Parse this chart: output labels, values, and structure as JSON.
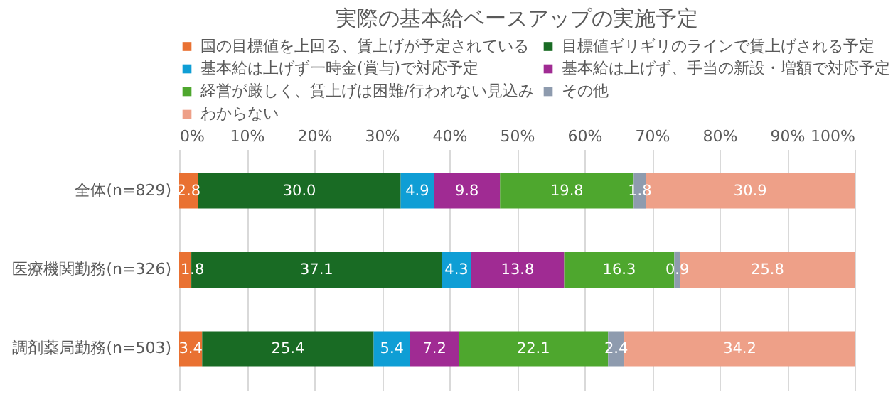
{
  "chart_data": {
    "type": "bar",
    "orientation": "horizontal",
    "stacked": true,
    "title": "実際の基本給ベースアップの実施予定",
    "categories": [
      "全体(n=829)",
      "医療機関勤務(n=326)",
      "調剤薬局勤務(n=503)"
    ],
    "series": [
      {
        "name": "国の目標値を上回る、賃上げが予定されている",
        "color": "#e97132",
        "values": [
          2.8,
          1.8,
          3.4
        ],
        "value_labels": [
          "2.8",
          "1.8",
          "3.4"
        ]
      },
      {
        "name": "目標値ギリギリのラインで賃上げされる予定",
        "color": "#196b24",
        "values": [
          30.0,
          37.1,
          25.4
        ],
        "value_labels": [
          "30.0",
          "37.1",
          "25.4"
        ]
      },
      {
        "name": "基本給は上げず一時金(賞与)で対応予定",
        "color": "#0f9ed5",
        "values": [
          4.9,
          4.3,
          5.4
        ],
        "value_labels": [
          "4.9",
          "4.3",
          "5.4"
        ]
      },
      {
        "name": "基本給は上げず、手当の新設・増額で対応予定",
        "color": "#a02b93",
        "values": [
          9.8,
          13.8,
          7.2
        ],
        "value_labels": [
          "9.8",
          "13.8",
          "7.2"
        ]
      },
      {
        "name": "経営が厳しく、賃上げは困難/行われない見込み",
        "color": "#4ea72e",
        "values": [
          19.8,
          16.3,
          22.1
        ],
        "value_labels": [
          "19.8",
          "16.3",
          "22.1"
        ]
      },
      {
        "name": "その他",
        "color": "#8e9bae",
        "values": [
          1.8,
          0.9,
          2.4
        ],
        "value_labels": [
          "1.8",
          "0.9",
          "2.4"
        ]
      },
      {
        "name": "わからない",
        "color": "#eea088",
        "values": [
          30.9,
          25.8,
          34.2
        ],
        "value_labels": [
          "30.9",
          "25.8",
          "34.2"
        ]
      }
    ],
    "xlim": [
      0,
      100
    ],
    "xticks": [
      {
        "value": 0,
        "label": "0%"
      },
      {
        "value": 10,
        "label": "10%"
      },
      {
        "value": 20,
        "label": "20%"
      },
      {
        "value": 30,
        "label": "30%"
      },
      {
        "value": 40,
        "label": "40%"
      },
      {
        "value": 50,
        "label": "50%"
      },
      {
        "value": 60,
        "label": "60%"
      },
      {
        "value": 70,
        "label": "70%"
      },
      {
        "value": 80,
        "label": "80%"
      },
      {
        "value": 90,
        "label": "90%"
      },
      {
        "value": 100,
        "label": "100%"
      }
    ],
    "grid": "x",
    "legend": "top"
  }
}
